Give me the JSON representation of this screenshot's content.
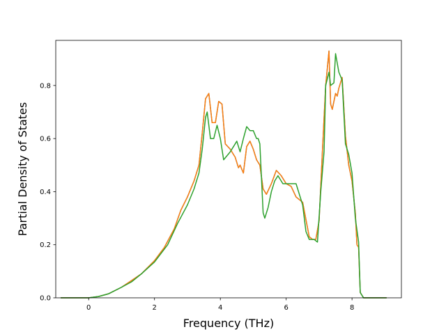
{
  "chart_data": {
    "type": "line",
    "title": "",
    "xlabel": "Frequency (THz)",
    "ylabel": "Partial Density of States",
    "xlim": [
      -1.0,
      9.5
    ],
    "ylim": [
      0.0,
      0.97
    ],
    "xticks": [
      0,
      2,
      4,
      6,
      8
    ],
    "xtick_labels": [
      "0",
      "2",
      "4",
      "6",
      "8"
    ],
    "yticks": [
      0.0,
      0.2,
      0.4,
      0.6,
      0.8
    ],
    "ytick_labels": [
      "0.0",
      "0.2",
      "0.4",
      "0.6",
      "0.8"
    ],
    "grid": false,
    "legend": "none",
    "series": [
      {
        "color": "#1f77b4",
        "x": [
          -0.85,
          0.0,
          0.3,
          0.6,
          1.0,
          1.3,
          1.6,
          2.0,
          2.3,
          2.6,
          2.8,
          3.0,
          3.2,
          3.35,
          3.45,
          3.55,
          3.65,
          3.75,
          3.85,
          3.95,
          4.05,
          4.15,
          4.3,
          4.45,
          4.55,
          4.6,
          4.7,
          4.8,
          4.9,
          5.0,
          5.1,
          5.2,
          5.3,
          5.4,
          5.55,
          5.7,
          5.85,
          6.0,
          6.15,
          6.3,
          6.5,
          6.7,
          6.8,
          6.9,
          7.0,
          7.1,
          7.2,
          7.3,
          7.35,
          7.4,
          7.5,
          7.55,
          7.6,
          7.7,
          7.8,
          7.9,
          8.0,
          8.1,
          8.15,
          8.2,
          8.25,
          8.35,
          9.05
        ],
        "y": [
          0.0,
          0.0,
          0.005,
          0.015,
          0.04,
          0.065,
          0.09,
          0.14,
          0.19,
          0.26,
          0.33,
          0.38,
          0.44,
          0.5,
          0.62,
          0.75,
          0.77,
          0.66,
          0.66,
          0.74,
          0.73,
          0.58,
          0.56,
          0.53,
          0.49,
          0.5,
          0.47,
          0.57,
          0.59,
          0.56,
          0.52,
          0.5,
          0.41,
          0.39,
          0.43,
          0.48,
          0.46,
          0.43,
          0.42,
          0.38,
          0.36,
          0.23,
          0.22,
          0.22,
          0.29,
          0.55,
          0.8,
          0.93,
          0.73,
          0.71,
          0.77,
          0.76,
          0.79,
          0.83,
          0.61,
          0.5,
          0.44,
          0.32,
          0.2,
          0.19,
          0.02,
          0.0,
          0.0
        ]
      },
      {
        "color": "#ff7f0e",
        "x": [
          -0.85,
          0.0,
          0.3,
          0.6,
          1.0,
          1.3,
          1.6,
          2.0,
          2.3,
          2.6,
          2.8,
          3.0,
          3.2,
          3.35,
          3.45,
          3.55,
          3.65,
          3.75,
          3.85,
          3.95,
          4.05,
          4.15,
          4.3,
          4.45,
          4.55,
          4.6,
          4.7,
          4.8,
          4.9,
          5.0,
          5.1,
          5.2,
          5.3,
          5.4,
          5.55,
          5.7,
          5.85,
          6.0,
          6.15,
          6.3,
          6.5,
          6.7,
          6.8,
          6.9,
          7.0,
          7.1,
          7.2,
          7.3,
          7.35,
          7.4,
          7.5,
          7.55,
          7.6,
          7.7,
          7.8,
          7.9,
          8.0,
          8.1,
          8.15,
          8.2,
          8.25,
          8.35,
          9.05
        ],
        "y": [
          0.0,
          0.0,
          0.005,
          0.015,
          0.04,
          0.065,
          0.09,
          0.14,
          0.19,
          0.26,
          0.33,
          0.38,
          0.44,
          0.5,
          0.62,
          0.75,
          0.77,
          0.66,
          0.66,
          0.74,
          0.73,
          0.58,
          0.56,
          0.53,
          0.49,
          0.5,
          0.47,
          0.57,
          0.59,
          0.56,
          0.52,
          0.5,
          0.41,
          0.39,
          0.43,
          0.48,
          0.46,
          0.43,
          0.42,
          0.38,
          0.36,
          0.23,
          0.22,
          0.22,
          0.29,
          0.55,
          0.8,
          0.93,
          0.73,
          0.71,
          0.77,
          0.76,
          0.79,
          0.83,
          0.61,
          0.5,
          0.44,
          0.32,
          0.2,
          0.19,
          0.02,
          0.0,
          0.0
        ]
      },
      {
        "color": "#2ca02c",
        "x": [
          -0.85,
          0.0,
          0.3,
          0.6,
          1.0,
          1.3,
          1.6,
          2.0,
          2.4,
          2.7,
          3.0,
          3.2,
          3.35,
          3.45,
          3.55,
          3.6,
          3.7,
          3.8,
          3.9,
          4.0,
          4.1,
          4.3,
          4.5,
          4.6,
          4.7,
          4.8,
          4.9,
          5.0,
          5.1,
          5.15,
          5.2,
          5.3,
          5.35,
          5.45,
          5.55,
          5.65,
          5.75,
          5.9,
          6.1,
          6.3,
          6.4,
          6.5,
          6.6,
          6.7,
          6.85,
          6.95,
          7.05,
          7.15,
          7.2,
          7.3,
          7.35,
          7.45,
          7.5,
          7.6,
          7.7,
          7.8,
          7.9,
          8.0,
          8.1,
          8.2,
          8.25,
          8.35,
          9.05
        ],
        "y": [
          0.0,
          0.0,
          0.005,
          0.015,
          0.04,
          0.06,
          0.09,
          0.135,
          0.2,
          0.28,
          0.35,
          0.41,
          0.47,
          0.56,
          0.68,
          0.7,
          0.6,
          0.6,
          0.65,
          0.6,
          0.52,
          0.55,
          0.59,
          0.55,
          0.6,
          0.645,
          0.63,
          0.63,
          0.6,
          0.6,
          0.58,
          0.32,
          0.3,
          0.34,
          0.4,
          0.44,
          0.46,
          0.43,
          0.43,
          0.43,
          0.39,
          0.35,
          0.25,
          0.22,
          0.22,
          0.21,
          0.4,
          0.55,
          0.8,
          0.85,
          0.8,
          0.81,
          0.92,
          0.85,
          0.82,
          0.58,
          0.54,
          0.47,
          0.3,
          0.21,
          0.02,
          0.0,
          0.0
        ]
      }
    ]
  }
}
